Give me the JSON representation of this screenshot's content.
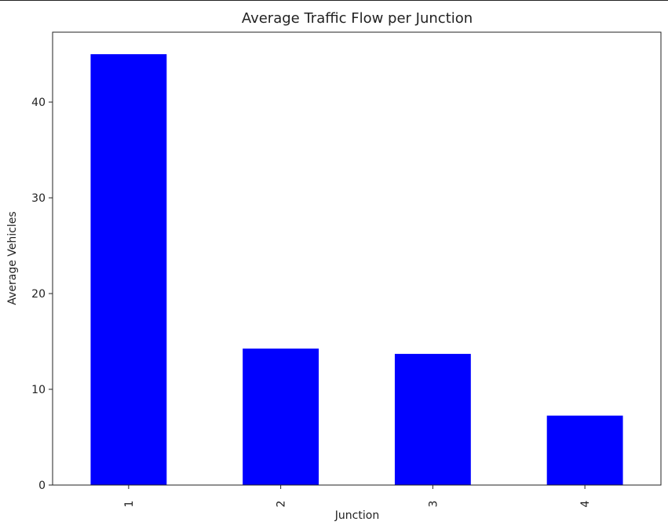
{
  "chart_data": {
    "type": "bar",
    "title": "Average Traffic Flow per Junction",
    "xlabel": "Junction",
    "ylabel": "Average Vehicles",
    "categories": [
      "1",
      "2",
      "3",
      "4"
    ],
    "values": [
      45.0,
      14.25,
      13.7,
      7.25
    ],
    "ylim": [
      0,
      47.3
    ],
    "yticks": [
      0,
      10,
      20,
      30,
      40
    ],
    "bar_color": "#0000ff",
    "grid": false,
    "legend": "none"
  }
}
